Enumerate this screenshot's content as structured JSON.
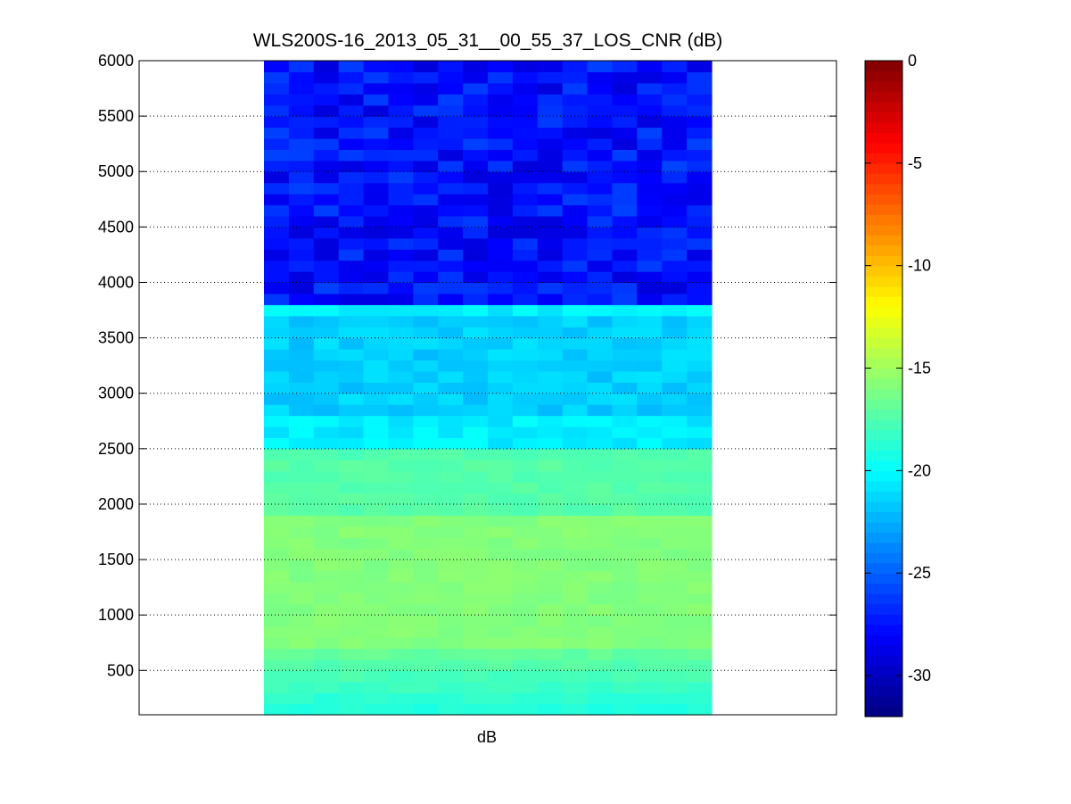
{
  "chart_data": {
    "type": "heatmap",
    "title": "WLS200S-16_2013_05_31__00_55_37_LOS_CNR (dB)",
    "xlabel": "dB",
    "ylabel": "",
    "ylim": [
      100,
      6000
    ],
    "y_ticks": [
      500,
      1000,
      1500,
      2000,
      2500,
      3000,
      3500,
      4000,
      4500,
      5000,
      5500,
      6000
    ],
    "grid": "dotted horizontal at y ticks",
    "colormap": "jet",
    "clim": [
      -32,
      0
    ],
    "colorbar_ticks": [
      0,
      -5,
      -10,
      -15,
      -20,
      -25,
      -30
    ],
    "n_columns": 18,
    "rows": [
      {
        "y_range": [
          100,
          2400
        ],
        "cnr_db": -16.5,
        "note": "greenish-yellow band"
      },
      {
        "y_range": [
          2400,
          2500
        ],
        "cnr_db": -17.5
      },
      {
        "y_range": [
          2500,
          2800
        ],
        "cnr_db": -20.5,
        "note": "cyan band"
      },
      {
        "y_range": [
          2800,
          3700
        ],
        "cnr_db": -21.5,
        "note": "light blue/cyan band"
      },
      {
        "y_range": [
          3700,
          3800
        ],
        "cnr_db": -20.5
      },
      {
        "y_range": [
          3800,
          6000
        ],
        "cnr_db": -27.5,
        "note": "dark blue noisy region"
      }
    ],
    "colorbar_label_ticks_text": [
      "0",
      "-5",
      "-10",
      "-15",
      "-20",
      "-25",
      "-30"
    ]
  }
}
